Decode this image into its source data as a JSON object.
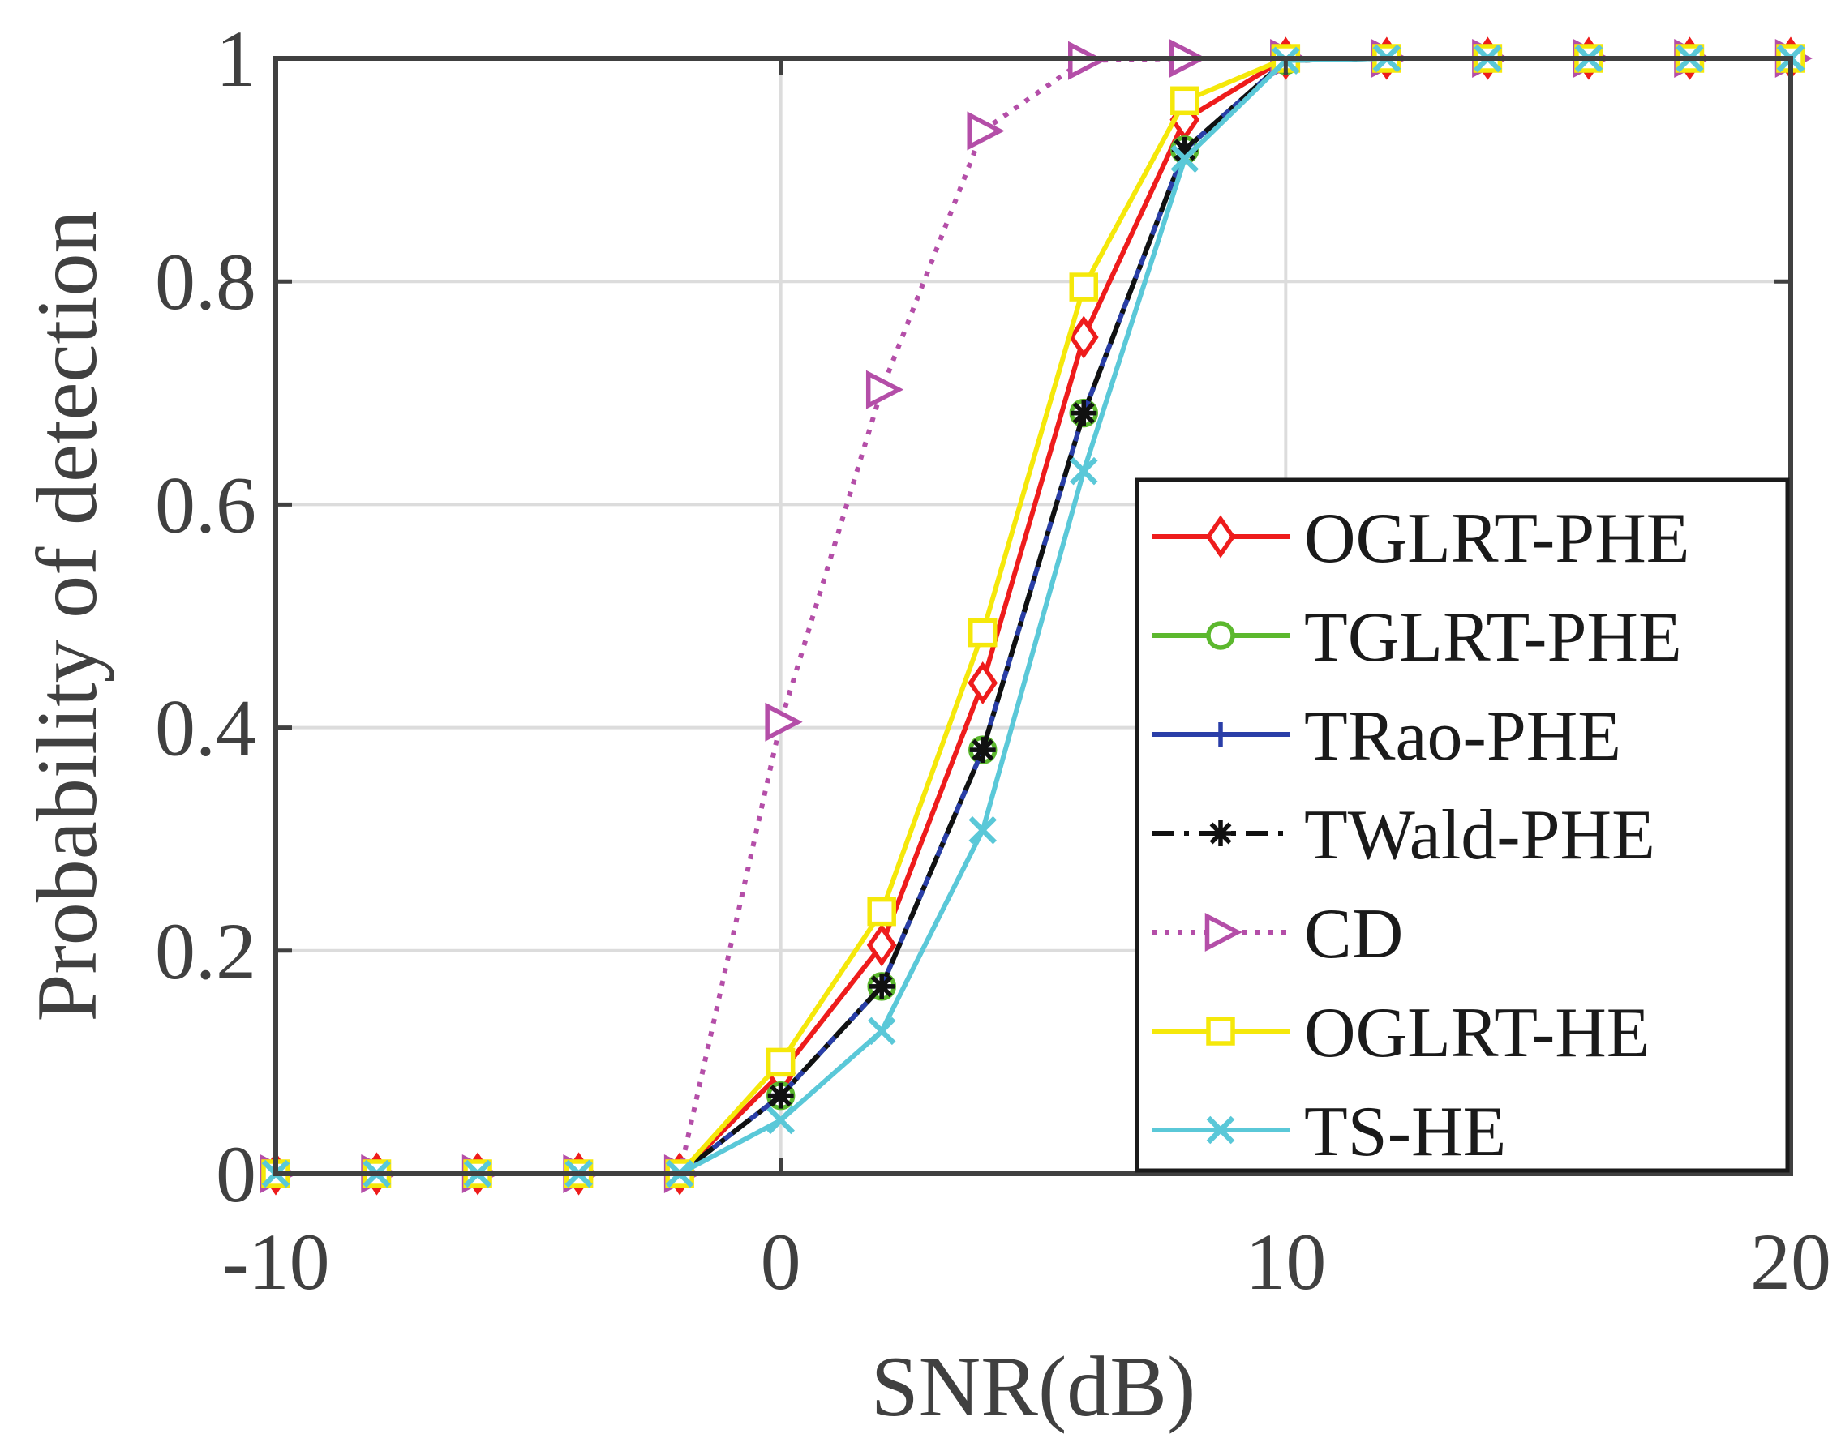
{
  "chart_data": {
    "type": "line",
    "title": "",
    "xlabel": "SNR(dB)",
    "ylabel": "Probability of detection",
    "xlim": [
      -10,
      20
    ],
    "ylim": [
      0,
      1
    ],
    "xticks": [
      -10,
      0,
      10,
      20
    ],
    "xtick_labels": [
      "-10",
      "0",
      "10",
      "20"
    ],
    "yticks": [
      0,
      0.2,
      0.4,
      0.6,
      0.8,
      1
    ],
    "ytick_labels": [
      "0",
      "0.2",
      "0.4",
      "0.6",
      "0.8",
      "1"
    ],
    "grid": true,
    "legend_position": "bottom-right",
    "x": [
      -10,
      -8,
      -6,
      -4,
      -2,
      0,
      2,
      4,
      6,
      8,
      10,
      12,
      14,
      16,
      18,
      20
    ],
    "series": [
      {
        "name": "OGLRT-PHE",
        "color": "#ee1c1c",
        "dash": "solid",
        "marker": "diamond",
        "values": [
          0,
          0,
          0,
          0,
          0,
          0.09,
          0.205,
          0.44,
          0.75,
          0.945,
          1,
          1,
          1,
          1,
          1,
          1
        ]
      },
      {
        "name": "TGLRT-PHE",
        "color": "#5cb82e",
        "dash": "solid",
        "marker": "circle",
        "values": [
          0,
          0,
          0,
          0,
          0,
          0.07,
          0.168,
          0.38,
          0.682,
          0.918,
          0.998,
          1,
          1,
          1,
          1,
          1
        ]
      },
      {
        "name": "TRao-PHE",
        "color": "#2a3ea8",
        "dash": "solid",
        "marker": "plus",
        "values": [
          0,
          0,
          0,
          0,
          0,
          0.07,
          0.168,
          0.38,
          0.682,
          0.918,
          0.998,
          1,
          1,
          1,
          1,
          1
        ]
      },
      {
        "name": "TWald-PHE",
        "color": "#111111",
        "dash": "dashdot",
        "marker": "asterisk",
        "values": [
          0,
          0,
          0,
          0,
          0,
          0.07,
          0.168,
          0.38,
          0.682,
          0.918,
          0.998,
          1,
          1,
          1,
          1,
          1
        ]
      },
      {
        "name": "CD",
        "color": "#b44ea8",
        "dash": "dotted",
        "marker": "triangle-right",
        "values": [
          0,
          0,
          0,
          0,
          0,
          0.405,
          0.703,
          0.935,
          0.998,
          1,
          1,
          1,
          1,
          1,
          1,
          1
        ]
      },
      {
        "name": "OGLRT-HE",
        "color": "#f5e80a",
        "dash": "solid",
        "marker": "square",
        "values": [
          0,
          0,
          0,
          0,
          0,
          0.1,
          0.235,
          0.485,
          0.795,
          0.962,
          1,
          1,
          1,
          1,
          1,
          1
        ]
      },
      {
        "name": "TS-HE",
        "color": "#5ac8d8",
        "dash": "solid",
        "marker": "x",
        "values": [
          0,
          0,
          0,
          0,
          0,
          0.048,
          0.128,
          0.308,
          0.63,
          0.91,
          0.998,
          1,
          1,
          1,
          1,
          1
        ]
      }
    ]
  }
}
